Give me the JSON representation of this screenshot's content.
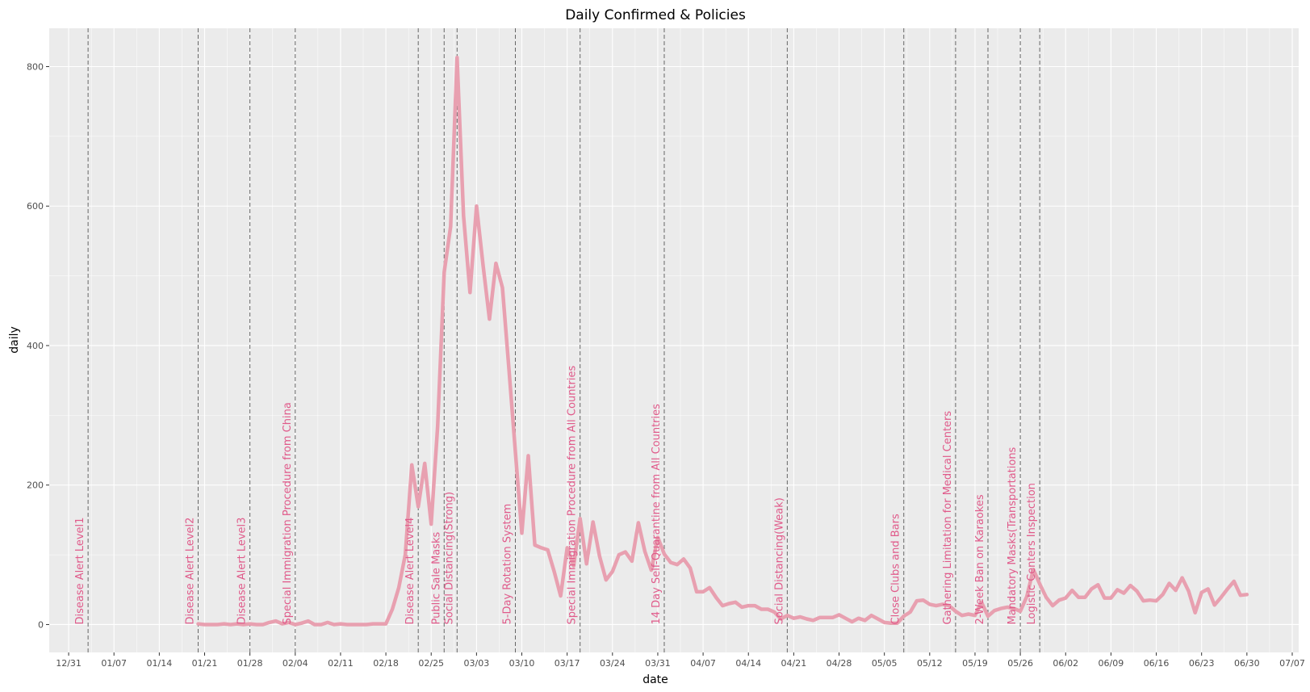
{
  "chart_data": {
    "type": "line",
    "title": "Daily Confirmed & Policies",
    "xlabel": "date",
    "ylabel": "daily",
    "year": 2020,
    "xlim": [
      "2019-12-28",
      "2020-07-08"
    ],
    "ylim": [
      -40,
      855
    ],
    "grid": true,
    "x_ticks": [
      "12/31",
      "01/07",
      "01/14",
      "01/21",
      "01/28",
      "02/04",
      "02/11",
      "02/18",
      "02/25",
      "03/03",
      "03/10",
      "03/17",
      "03/24",
      "03/31",
      "04/07",
      "04/14",
      "04/21",
      "04/28",
      "05/05",
      "05/12",
      "05/19",
      "05/26",
      "06/02",
      "06/09",
      "06/16",
      "06/23",
      "06/30",
      "07/07"
    ],
    "y_ticks": [
      0,
      200,
      400,
      600,
      800
    ],
    "series": [
      {
        "color": "#e8a0b0",
        "x": [
          "01/20",
          "01/21",
          "01/22",
          "01/23",
          "01/24",
          "01/25",
          "01/26",
          "01/27",
          "01/28",
          "01/29",
          "01/30",
          "01/31",
          "02/01",
          "02/02",
          "02/03",
          "02/04",
          "02/05",
          "02/06",
          "02/07",
          "02/08",
          "02/09",
          "02/10",
          "02/11",
          "02/12",
          "02/13",
          "02/14",
          "02/15",
          "02/16",
          "02/17",
          "02/18",
          "02/19",
          "02/20",
          "02/21",
          "02/22",
          "02/23",
          "02/24",
          "02/25",
          "02/26",
          "02/27",
          "02/28",
          "02/29",
          "03/01",
          "03/02",
          "03/03",
          "03/04",
          "03/05",
          "03/06",
          "03/07",
          "03/08",
          "03/09",
          "03/10",
          "03/11",
          "03/12",
          "03/13",
          "03/14",
          "03/15",
          "03/16",
          "03/17",
          "03/18",
          "03/19",
          "03/20",
          "03/21",
          "03/22",
          "03/23",
          "03/24",
          "03/25",
          "03/26",
          "03/27",
          "03/28",
          "03/29",
          "03/30",
          "03/31",
          "04/01",
          "04/02",
          "04/03",
          "04/04",
          "04/05",
          "04/06",
          "04/07",
          "04/08",
          "04/09",
          "04/10",
          "04/11",
          "04/12",
          "04/13",
          "04/14",
          "04/15",
          "04/16",
          "04/17",
          "04/18",
          "04/19",
          "04/20",
          "04/21",
          "04/22",
          "04/23",
          "04/24",
          "04/25",
          "04/26",
          "04/27",
          "04/28",
          "04/29",
          "04/30",
          "05/01",
          "05/02",
          "05/03",
          "05/04",
          "05/05",
          "05/06",
          "05/07",
          "05/08",
          "05/09",
          "05/10",
          "05/11",
          "05/12",
          "05/13",
          "05/14",
          "05/15",
          "05/16",
          "05/17",
          "05/18",
          "05/19",
          "05/20",
          "05/21",
          "05/22",
          "05/23",
          "05/24",
          "05/25",
          "05/26",
          "05/27",
          "05/28",
          "05/29",
          "05/30",
          "05/31",
          "06/01",
          "06/02",
          "06/03",
          "06/04",
          "06/05",
          "06/06",
          "06/07",
          "06/08",
          "06/09",
          "06/10",
          "06/11",
          "06/12",
          "06/13",
          "06/14",
          "06/15",
          "06/16",
          "06/17",
          "06/18",
          "06/19",
          "06/20",
          "06/21",
          "06/22",
          "06/23",
          "06/24",
          "06/25",
          "06/26",
          "06/27",
          "06/28",
          "06/29",
          "06/30"
        ],
        "y": [
          1,
          0,
          0,
          0,
          1,
          0,
          1,
          0,
          1,
          0,
          0,
          3,
          5,
          1,
          3,
          0,
          2,
          5,
          0,
          0,
          3,
          0,
          1,
          0,
          0,
          0,
          0,
          1,
          1,
          1,
          22,
          53,
          100,
          229,
          169,
          231,
          144,
          284,
          505,
          571,
          813,
          586,
          476,
          600,
          516,
          438,
          518,
          483,
          367,
          248,
          131,
          242,
          114,
          110,
          107,
          76,
          41,
          110,
          84,
          152,
          87,
          147,
          98,
          64,
          76,
          100,
          104,
          91,
          146,
          105,
          78,
          125,
          101,
          89,
          86,
          94,
          81,
          47,
          47,
          53,
          39,
          27,
          30,
          32,
          25,
          27,
          27,
          22,
          22,
          18,
          8,
          13,
          9,
          11,
          8,
          6,
          10,
          10,
          10,
          14,
          9,
          4,
          9,
          6,
          13,
          8,
          3,
          2,
          2,
          12,
          18,
          34,
          35,
          29,
          27,
          29,
          27,
          19,
          13,
          15,
          13,
          32,
          12,
          20,
          23,
          25,
          23,
          19,
          40,
          79,
          58,
          39,
          27,
          35,
          38,
          49,
          39,
          39,
          51,
          57,
          38,
          38,
          50,
          45,
          56,
          48,
          34,
          35,
          34,
          43,
          59,
          49,
          67,
          48,
          17,
          46,
          51,
          28,
          39,
          51,
          62,
          42,
          43
        ]
      }
    ],
    "policies": [
      {
        "date": "01/03",
        "label": "Disease Alert Level1"
      },
      {
        "date": "01/20",
        "label": "Disease Alert Level2"
      },
      {
        "date": "01/28",
        "label": "Disease Alert Level3"
      },
      {
        "date": "02/04",
        "label": "Special Immigration Procedure from China"
      },
      {
        "date": "02/23",
        "label": "Disease Alert Level4"
      },
      {
        "date": "02/27",
        "label": "Public Sale Masks"
      },
      {
        "date": "02/29",
        "label": "Social Distancing(Strong)"
      },
      {
        "date": "03/09",
        "label": "5-Day Rotation System"
      },
      {
        "date": "03/19",
        "label": "Special Immigration Procedure from All Countries"
      },
      {
        "date": "04/01",
        "label": "14 Day Self-Quarantine from All Countries"
      },
      {
        "date": "04/20",
        "label": "Social Distancing(Weak)"
      },
      {
        "date": "05/08",
        "label": "Close Clubs and Bars"
      },
      {
        "date": "05/16",
        "label": "Gathering Limitation for Medical Centers"
      },
      {
        "date": "05/21",
        "label": "2-Week Ban on Karaokes"
      },
      {
        "date": "05/26",
        "label": "Mandatory Masks(Transportations"
      },
      {
        "date": "05/29",
        "label": "Logistic Centers Inspection"
      }
    ],
    "policy_line_color": "#666666",
    "policy_label_color": "#e05a8a",
    "panel_color": "#ebebeb",
    "grid_color": "#ffffff"
  }
}
